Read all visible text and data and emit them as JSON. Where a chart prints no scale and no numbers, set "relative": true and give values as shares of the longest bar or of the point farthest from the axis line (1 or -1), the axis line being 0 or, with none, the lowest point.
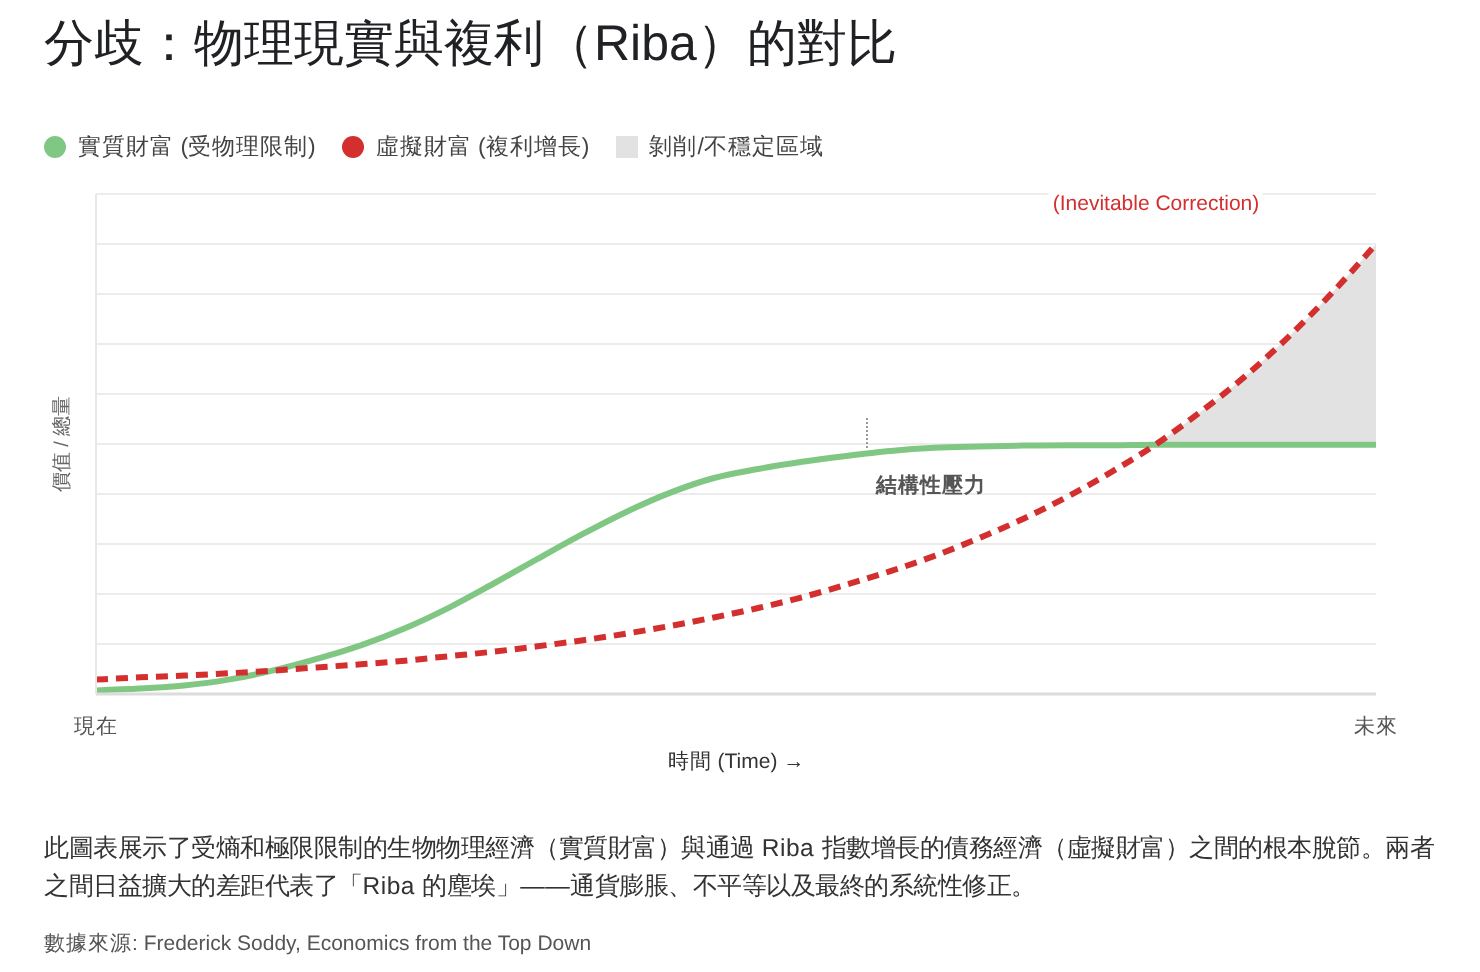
{
  "chart_data": {
    "type": "line",
    "title": "分歧：物理現實與複利（Riba）的對比",
    "xlabel": "時間 (Time) →",
    "ylabel": "價值 / 總量",
    "annotations": [
      "(Inevitable Correction)",
      "結構性壓力",
      "此圖表展示了受熵和極限限制的生物物理經濟（實質財富）與通過 Riba 指數增長的債務經濟（虛擬財富）之間的根本脫節。兩者之間日益擴大的差距代表了「Riba 的塵埃」——通貨膨脹、不平等以及最終的系統性修正。",
      "數據來源: Frederick Soddy, Economics from the Top Down"
    ],
    "categories": [
      "現在",
      null,
      null,
      null,
      null,
      null,
      null,
      null,
      null,
      null,
      null,
      null,
      null,
      null,
      null,
      null,
      null,
      null,
      null,
      null,
      null,
      null,
      null,
      null,
      null,
      null,
      null,
      null,
      null,
      "未來"
    ],
    "relative": true,
    "series": [
      {
        "name": "實質財富 (受物理限制)",
        "color": "#81c784",
        "values": [
          0.008,
          0.012,
          0.019,
          0.032,
          0.052,
          0.078,
          0.108,
          0.146,
          0.192,
          0.245,
          0.3,
          0.354,
          0.404,
          0.447,
          0.48,
          0.5,
          0.516,
          0.529,
          0.54,
          0.547,
          0.55,
          0.552,
          0.553,
          0.553,
          0.554,
          0.554,
          0.554,
          0.554,
          0.554,
          0.554
        ]
      },
      {
        "name": "虛擬財富 (複利增長)",
        "color": "#d32f2f",
        "line_style": "dashed",
        "values": [
          0.032,
          0.037,
          0.041,
          0.046,
          0.052,
          0.059,
          0.066,
          0.074,
          0.084,
          0.094,
          0.106,
          0.119,
          0.134,
          0.151,
          0.17,
          0.191,
          0.215,
          0.243,
          0.273,
          0.307,
          0.346,
          0.389,
          0.438,
          0.493,
          0.554,
          0.625,
          0.703,
          0.792,
          0.891,
          1
        ]
      },
      {
        "name": "剝削/不穩定區域",
        "type": "area",
        "color": "#e2e2e2",
        "values": [
          null,
          null,
          null,
          null,
          null,
          null,
          null,
          null,
          null,
          null,
          null,
          null,
          null,
          null,
          null,
          null,
          null,
          null,
          null,
          null,
          null,
          null,
          null,
          null,
          0.554,
          0.625,
          0.703,
          0.792,
          0.891,
          1
        ]
      }
    ],
    "grid": "y",
    "legend": "top left",
    "marker": "none",
    "line_style": "solid"
  }
}
